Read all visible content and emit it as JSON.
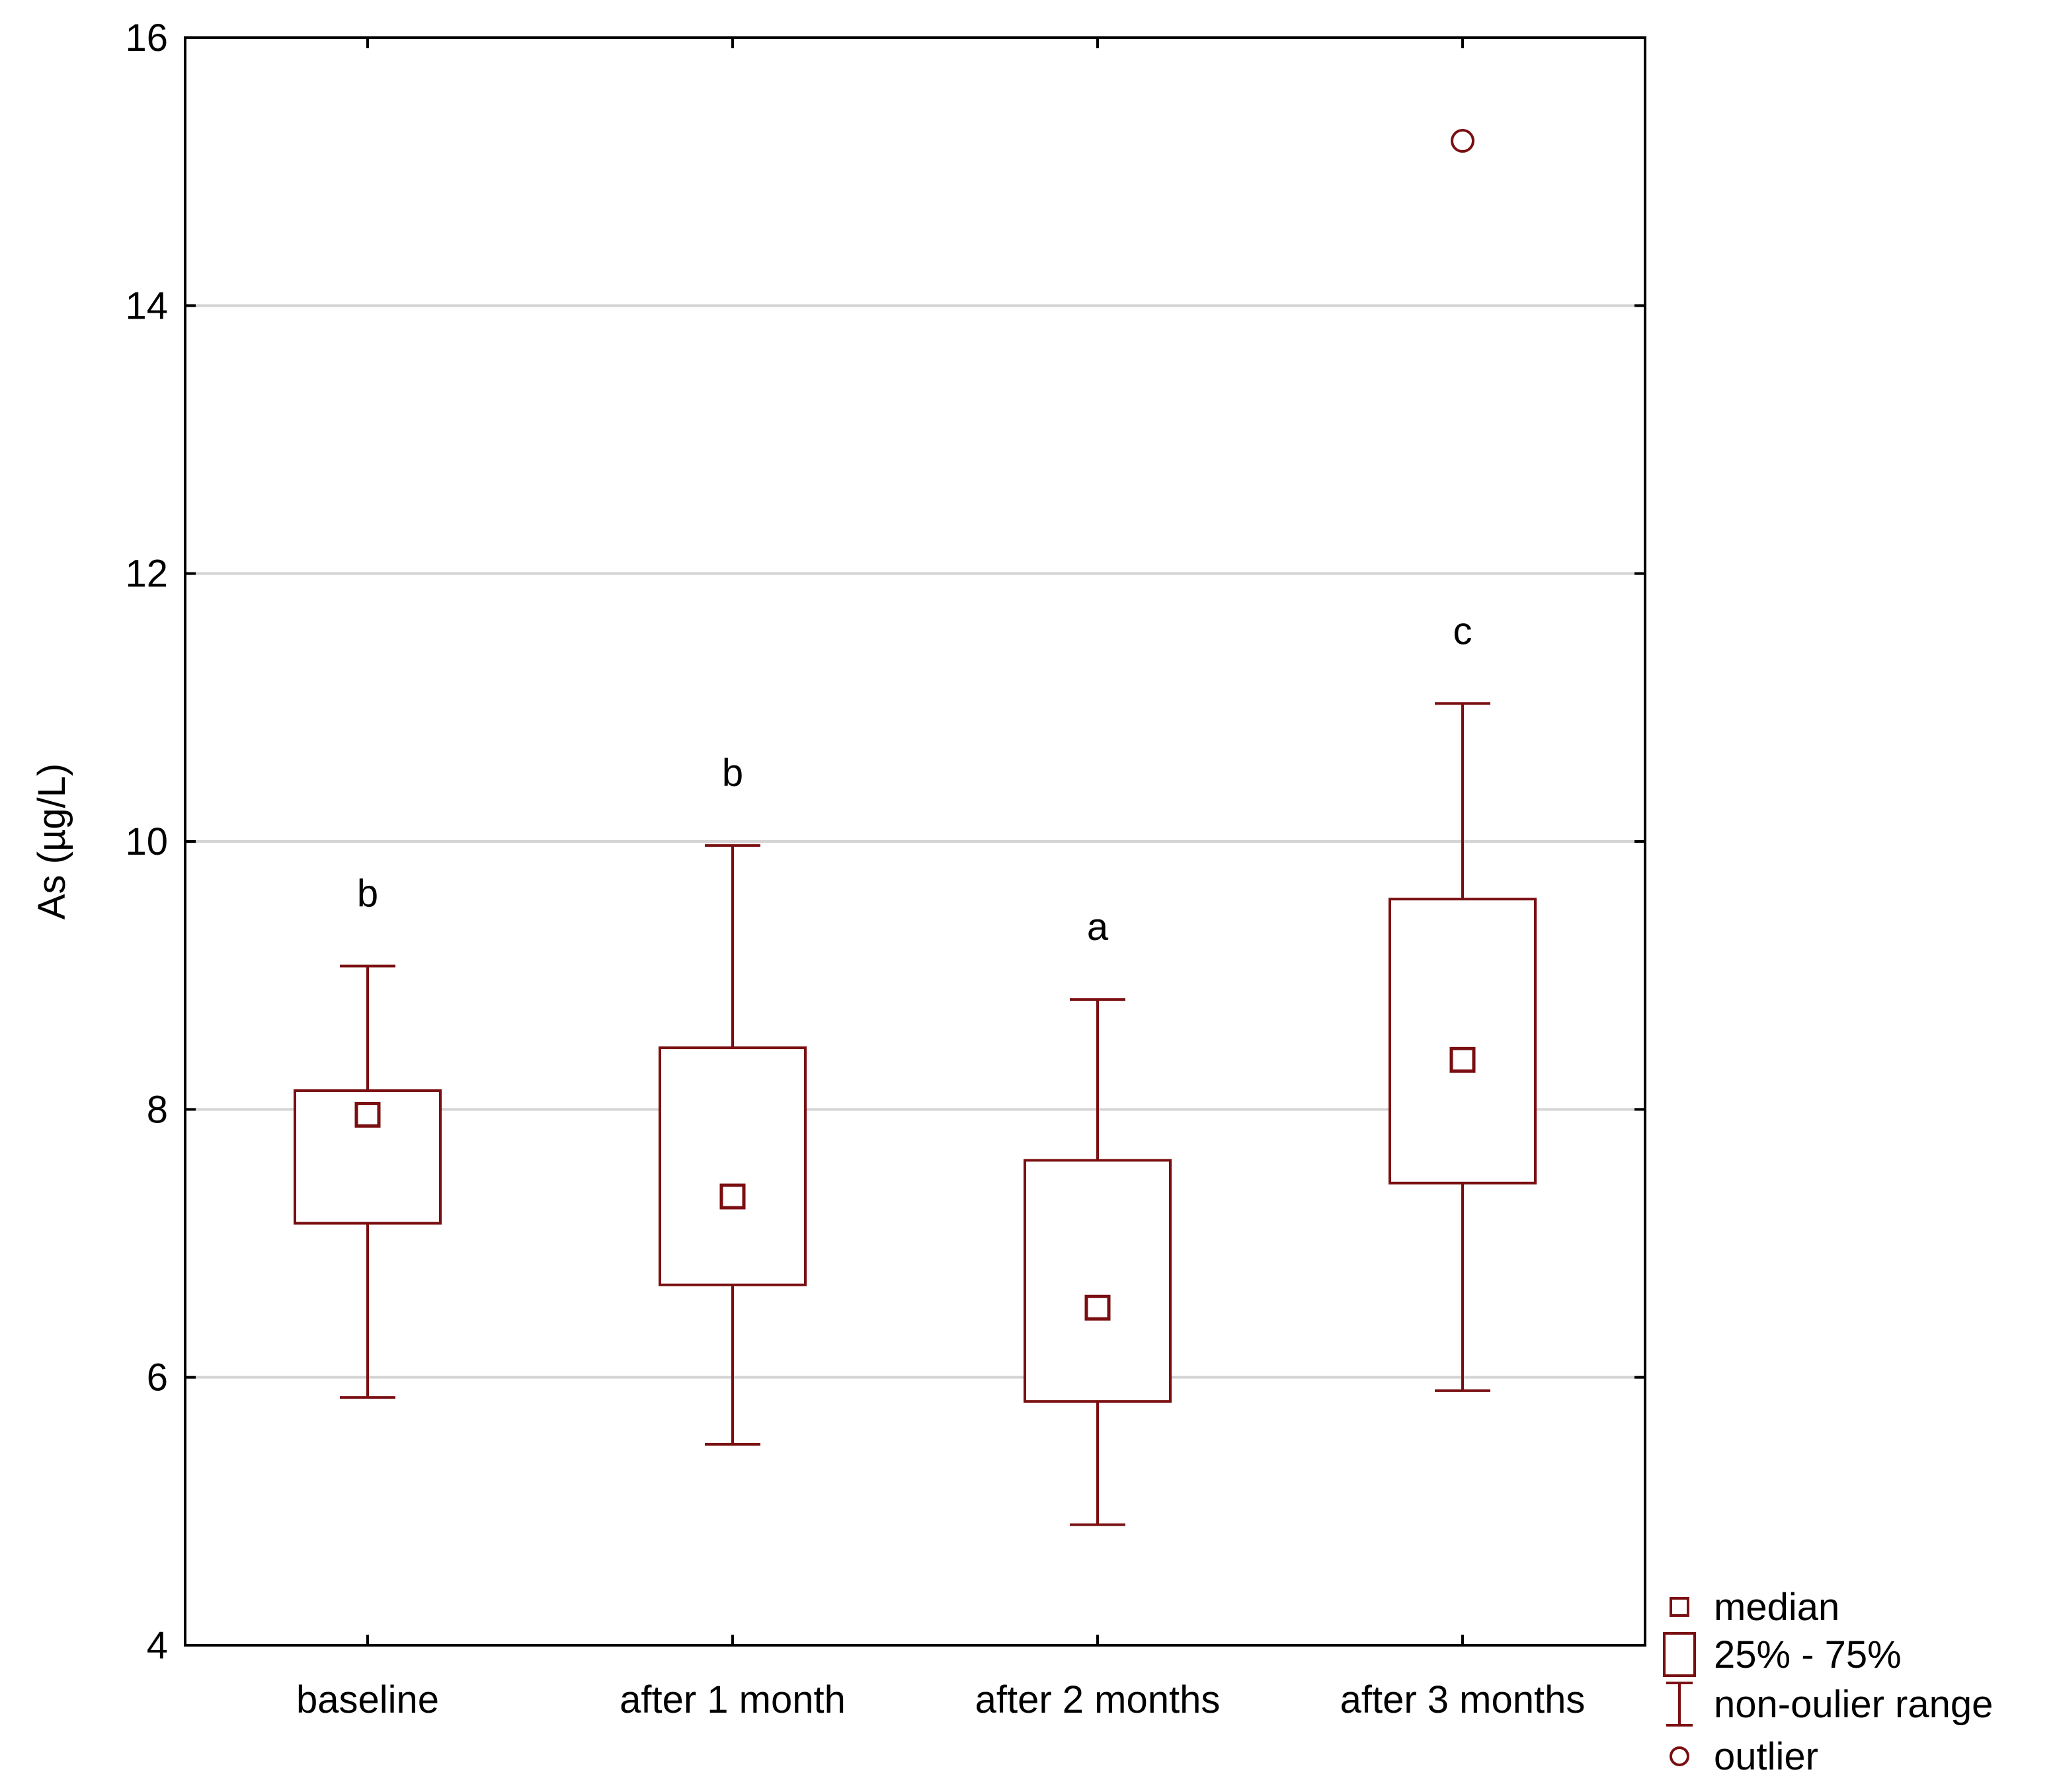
{
  "chart_data": {
    "type": "box",
    "ylabel": "As (µg/L)",
    "xlabel": "",
    "ylim": [
      4,
      16
    ],
    "yticks": [
      4,
      6,
      8,
      10,
      12,
      14,
      16
    ],
    "grid": true,
    "categories": [
      "baseline",
      "after 1 month",
      "after 2 months",
      "after 3 months"
    ],
    "boxes": [
      {
        "category": "baseline",
        "whisker_low": 5.85,
        "q1": 7.15,
        "median": 7.96,
        "q3": 8.14,
        "whisker_high": 9.07,
        "outliers": [],
        "letter": "b"
      },
      {
        "category": "after 1 month",
        "whisker_low": 5.5,
        "q1": 6.69,
        "median": 7.35,
        "q3": 8.46,
        "whisker_high": 9.97,
        "outliers": [],
        "letter": "b"
      },
      {
        "category": "after 2 months",
        "whisker_low": 4.9,
        "q1": 5.82,
        "median": 6.52,
        "q3": 7.62,
        "whisker_high": 8.82,
        "outliers": [],
        "letter": "a"
      },
      {
        "category": "after 3 months",
        "whisker_low": 5.9,
        "q1": 7.45,
        "median": 8.37,
        "q3": 9.57,
        "whisker_high": 11.03,
        "outliers": [
          15.23
        ],
        "letter": "c"
      }
    ],
    "legend": {
      "position": "bottom-right",
      "entries": [
        {
          "symbol": "median-square",
          "label": "median"
        },
        {
          "symbol": "box",
          "label": "25% - 75%"
        },
        {
          "symbol": "whisker",
          "label": "non-oulier range"
        },
        {
          "symbol": "circle",
          "label": "outlier"
        }
      ]
    },
    "colors": {
      "series": "#7a0f12",
      "grid": "#d4d4d4",
      "axis": "#000000"
    }
  }
}
